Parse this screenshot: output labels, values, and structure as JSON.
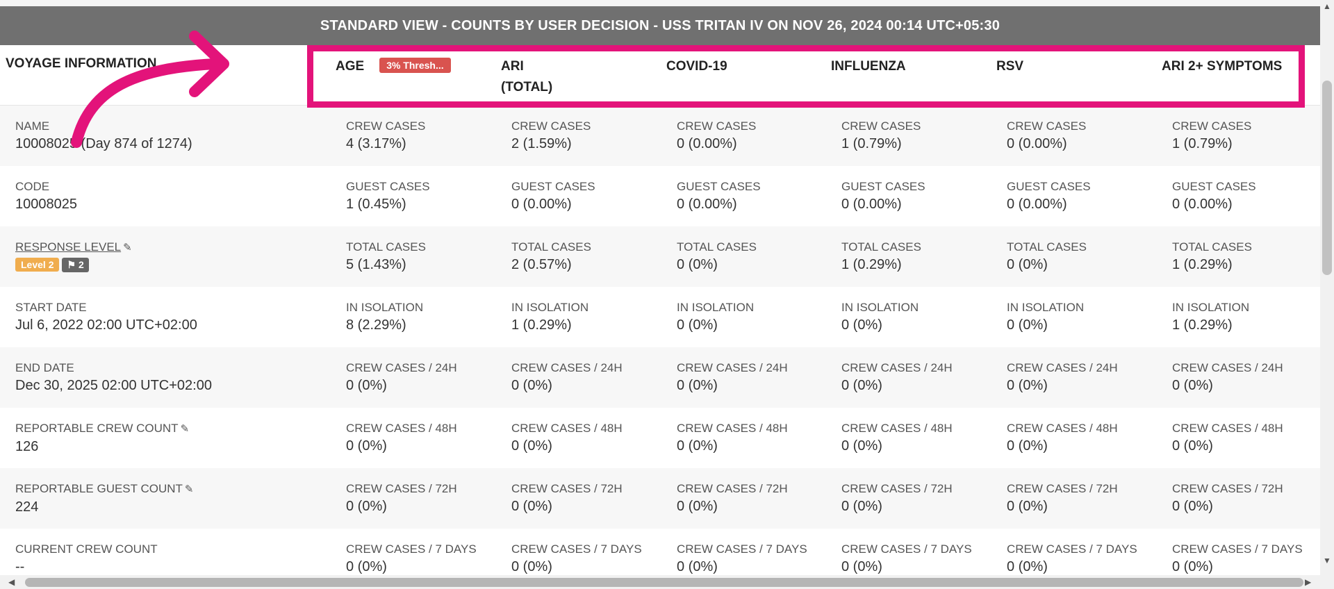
{
  "title": "STANDARD VIEW - COUNTS BY USER DECISION - USS TRITAN IV ON NOV 26, 2024 00:14 UTC+05:30",
  "header": {
    "voyage_title": "VOYAGE INFORMATION",
    "columns": [
      {
        "label": "AGE",
        "badge": "3% Thresh..."
      },
      {
        "label": "ARI",
        "label2": "(TOTAL)"
      },
      {
        "label": "COVID-19"
      },
      {
        "label": "INFLUENZA"
      },
      {
        "label": "RSV"
      },
      {
        "label": "ARI 2+ SYMPTOMS"
      }
    ]
  },
  "rows": [
    {
      "info_label": "NAME",
      "info_value": "10008025 (Day 874 of 1274)",
      "metric": "CREW CASES",
      "values": [
        "4 (3.17%)",
        "2 (1.59%)",
        "0 (0.00%)",
        "1 (0.79%)",
        "0 (0.00%)",
        "1 (0.79%)"
      ]
    },
    {
      "info_label": "CODE",
      "info_value": "10008025",
      "metric": "GUEST CASES",
      "values": [
        "1 (0.45%)",
        "0 (0.00%)",
        "0 (0.00%)",
        "0 (0.00%)",
        "0 (0.00%)",
        "0 (0.00%)"
      ]
    },
    {
      "info_label": "RESPONSE LEVEL",
      "level_badge": "Level 2",
      "flag_count": "2",
      "metric": "TOTAL CASES",
      "values": [
        "5 (1.43%)",
        "2 (0.57%)",
        "0 (0%)",
        "1 (0.29%)",
        "0 (0%)",
        "1 (0.29%)"
      ]
    },
    {
      "info_label": "START DATE",
      "info_value": "Jul 6, 2022 02:00 UTC+02:00",
      "metric": "IN ISOLATION",
      "values": [
        "8 (2.29%)",
        "1 (0.29%)",
        "0 (0%)",
        "0 (0%)",
        "0 (0%)",
        "1 (0.29%)"
      ]
    },
    {
      "info_label": "END DATE",
      "info_value": "Dec 30, 2025 02:00 UTC+02:00",
      "metric": "CREW CASES / 24H",
      "values": [
        "0 (0%)",
        "0 (0%)",
        "0 (0%)",
        "0 (0%)",
        "0 (0%)",
        "0 (0%)"
      ]
    },
    {
      "info_label": "REPORTABLE CREW COUNT",
      "info_value": "126",
      "metric": "CREW CASES / 48H",
      "values": [
        "0 (0%)",
        "0 (0%)",
        "0 (0%)",
        "0 (0%)",
        "0 (0%)",
        "0 (0%)"
      ]
    },
    {
      "info_label": "REPORTABLE GUEST COUNT",
      "info_value": "224",
      "metric": "CREW CASES / 72H",
      "values": [
        "0 (0%)",
        "0 (0%)",
        "0 (0%)",
        "0 (0%)",
        "0 (0%)",
        "0 (0%)"
      ]
    },
    {
      "info_label": "CURRENT CREW COUNT",
      "info_value": "--",
      "metric": "CREW CASES / 7 DAYS",
      "values": [
        "0 (0%)",
        "0 (0%)",
        "0 (0%)",
        "0 (0%)",
        "0 (0%)",
        "0 (0%)"
      ]
    }
  ],
  "icons": {
    "edit": "pencil-icon",
    "flag": "flag-icon"
  },
  "colors": {
    "title_bar": "#707070",
    "highlight": "#e3137a",
    "threshold_badge": "#d9534f",
    "level_badge": "#f0ad4e",
    "flag_badge": "#666666"
  }
}
